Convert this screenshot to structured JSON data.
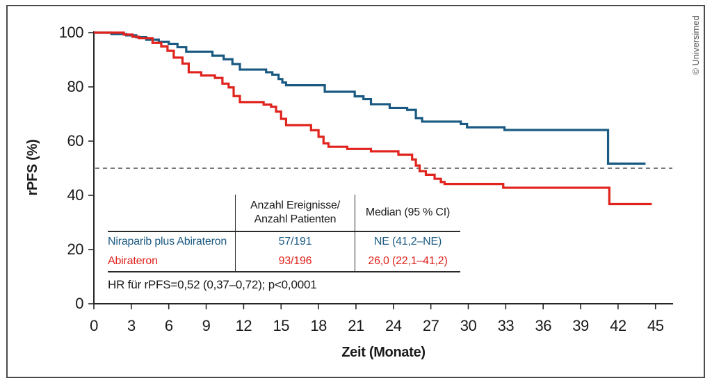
{
  "frame": {
    "copyright": "© Universimed"
  },
  "chart_data": {
    "type": "line",
    "subtype": "kaplan-meier-step",
    "title": "",
    "xlabel": "Zeit (Monate)",
    "ylabel": "rPFS (%)",
    "xlim": [
      0,
      46.3
    ],
    "ylim": [
      0,
      100
    ],
    "x_ticks": [
      0,
      3,
      6,
      9,
      12,
      15,
      18,
      21,
      24,
      27,
      30,
      33,
      36,
      39,
      42,
      45
    ],
    "y_ticks": [
      0,
      20,
      40,
      60,
      80,
      100
    ],
    "grid": false,
    "legend_position": "none",
    "reference_line_y": 50,
    "reference_line_style": "dashed",
    "axis_color": "#262626",
    "reference_line_color": "#4d4d4d",
    "series": [
      {
        "name": "Niraparib plus Abirateron",
        "color": "#1a5a82",
        "step": true,
        "end_x": 44.2,
        "points": [
          [
            0,
            100
          ],
          [
            1.4,
            99.5
          ],
          [
            2.6,
            99
          ],
          [
            3.4,
            98.3
          ],
          [
            4.2,
            97.4
          ],
          [
            5.2,
            96.6
          ],
          [
            6,
            95.8
          ],
          [
            6.7,
            94.7
          ],
          [
            7.4,
            93
          ],
          [
            9.5,
            91.5
          ],
          [
            10.4,
            90.2
          ],
          [
            11.1,
            88.4
          ],
          [
            11.7,
            86.4
          ],
          [
            13.8,
            85.4
          ],
          [
            14.3,
            84.5
          ],
          [
            14.8,
            82.9
          ],
          [
            15.1,
            81.6
          ],
          [
            15.4,
            80.6
          ],
          [
            18.5,
            78.2
          ],
          [
            20.9,
            76.5
          ],
          [
            21.6,
            75.5
          ],
          [
            22.2,
            73.6
          ],
          [
            23.7,
            72.2
          ],
          [
            25.1,
            71.5
          ],
          [
            25.8,
            68.5
          ],
          [
            26.3,
            67.2
          ],
          [
            29.4,
            66.3
          ],
          [
            29.9,
            65.1
          ],
          [
            32.9,
            64.1
          ],
          [
            41.2,
            51.7
          ]
        ]
      },
      {
        "name": "Abirateron",
        "color": "#e0231c",
        "step": true,
        "end_x": 44.7,
        "points": [
          [
            0,
            100
          ],
          [
            2.4,
            99.3
          ],
          [
            3.1,
            98.5
          ],
          [
            3.6,
            98
          ],
          [
            4.7,
            96.3
          ],
          [
            5.4,
            94.9
          ],
          [
            5.9,
            93.3
          ],
          [
            6.4,
            90.8
          ],
          [
            7.1,
            88.6
          ],
          [
            7.6,
            85.4
          ],
          [
            8.6,
            84.2
          ],
          [
            9.7,
            83.3
          ],
          [
            10.3,
            81.2
          ],
          [
            10.8,
            79.8
          ],
          [
            11.2,
            76.6
          ],
          [
            11.7,
            74.4
          ],
          [
            13.6,
            73.5
          ],
          [
            14.2,
            72.7
          ],
          [
            14.6,
            70.9
          ],
          [
            15,
            68.2
          ],
          [
            15.4,
            65.9
          ],
          [
            17.4,
            64
          ],
          [
            18,
            61.6
          ],
          [
            18.4,
            59.2
          ],
          [
            18.8,
            57.9
          ],
          [
            20.3,
            57.1
          ],
          [
            22.2,
            56.2
          ],
          [
            24.4,
            55
          ],
          [
            25.5,
            53.2
          ],
          [
            25.8,
            51
          ],
          [
            26.1,
            48.9
          ],
          [
            26.6,
            47.6
          ],
          [
            27.3,
            46.1
          ],
          [
            27.8,
            44.9
          ],
          [
            28.1,
            44.2
          ],
          [
            32.8,
            42.8
          ],
          [
            41.3,
            36.8
          ]
        ]
      }
    ]
  },
  "table": {
    "col2_header": "Anzahl Ereignisse/\nAnzahl Patienten",
    "col3_header": "Median (95 % CI)",
    "rows": [
      {
        "label": "Niraparib plus Abirateron",
        "events": "57/191",
        "median": "NE (41,2–NE)",
        "color": "#1a5a82"
      },
      {
        "label": "Abirateron",
        "events": "93/196",
        "median": "26,0 (22,1–41,2)",
        "color": "#e0231c"
      }
    ],
    "footnote": "HR für rPFS=0,52 (0,37–0,72); p<0,0001"
  }
}
